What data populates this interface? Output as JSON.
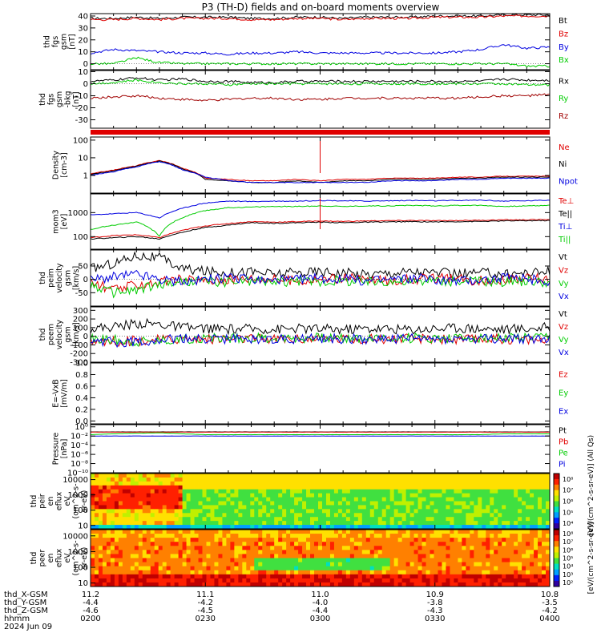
{
  "title": "P3 (TH-D) fields and on-board moments overview",
  "colors": {
    "black": "#000000",
    "red": "#e00000",
    "dark_red": "#a00000",
    "green": "#00cc00",
    "blue": "#0000e0",
    "dark_green": "#00a000"
  },
  "chart_data": [
    {
      "type": "line",
      "ylabel": [
        "thd",
        "fgs",
        "gsm",
        "[nT]"
      ],
      "ylim": [
        -5,
        42
      ],
      "yticks": [
        0,
        10,
        20,
        30,
        40
      ],
      "series": [
        {
          "name": "Bt",
          "color": "black",
          "values": [
            38,
            38,
            39,
            38,
            39,
            39,
            39,
            38,
            38,
            39,
            39,
            38,
            39,
            39,
            39,
            40,
            40,
            40,
            41,
            41,
            41
          ]
        },
        {
          "name": "Bz",
          "color": "red",
          "values": [
            37,
            37,
            38,
            37,
            38,
            38,
            38,
            37,
            37,
            38,
            38,
            37,
            38,
            38,
            38,
            39,
            39,
            39,
            40,
            40,
            40
          ]
        },
        {
          "name": "By",
          "color": "blue",
          "values": [
            9,
            12,
            11,
            10,
            9,
            9,
            8,
            9,
            9,
            10,
            9,
            9,
            9,
            9,
            9,
            9,
            10,
            12,
            16,
            13,
            14
          ]
        },
        {
          "name": "Bx",
          "color": "green",
          "values": [
            0,
            0,
            5,
            1,
            0,
            0,
            0,
            0,
            0,
            0,
            0,
            0,
            0,
            0,
            0,
            0,
            0,
            0,
            0,
            -2,
            -2
          ]
        }
      ]
    },
    {
      "type": "line",
      "ylabel": [
        "thd",
        "fgs",
        "gsm",
        "-bkg",
        "[nT]"
      ],
      "ylim": [
        -37,
        11
      ],
      "yticks": [
        10,
        0,
        -10,
        -20,
        -30
      ],
      "series": [
        {
          "name": "Rx",
          "color": "black",
          "values": [
            2,
            3,
            5,
            3,
            4,
            2,
            2,
            1,
            1,
            2,
            2,
            2,
            2,
            2,
            2,
            2,
            2,
            2,
            4,
            3,
            3
          ]
        },
        {
          "name": "Ry",
          "color": "green",
          "values": [
            0,
            1,
            3,
            1,
            0,
            0,
            -1,
            0,
            0,
            0,
            0,
            0,
            0,
            0,
            0,
            0,
            0,
            0,
            0,
            -1,
            -1
          ]
        },
        {
          "name": "Rz",
          "color": "dark_red",
          "values": [
            -12,
            -11,
            -10,
            -12,
            -13,
            -14,
            -13,
            -12,
            -12,
            -13,
            -13,
            -12,
            -12,
            -12,
            -12,
            -12,
            -12,
            -11,
            -10,
            -10,
            -9
          ]
        }
      ]
    },
    {
      "type": "line",
      "scale": "log",
      "ylabel": [
        "Density",
        "[cm-3]"
      ],
      "ylim": [
        0.1,
        150
      ],
      "yticks": [
        1,
        10,
        100
      ],
      "series": [
        {
          "name": "Ne",
          "color": "red",
          "values": [
            1.2,
            2.0,
            3.5,
            7.0,
            2.5,
            0.7,
            0.6,
            0.5,
            0.5,
            0.6,
            0.5,
            0.6,
            0.6,
            0.7,
            0.7,
            0.7,
            0.8,
            0.8,
            0.9,
            0.9,
            0.9
          ]
        },
        {
          "name": "Ni",
          "color": "black",
          "values": [
            1.1,
            1.8,
            3.3,
            6.5,
            2.3,
            0.6,
            0.5,
            0.4,
            0.4,
            0.5,
            0.4,
            0.5,
            0.5,
            0.6,
            0.6,
            0.6,
            0.7,
            0.7,
            0.8,
            0.8,
            0.8
          ]
        },
        {
          "name": "Npot",
          "color": "blue",
          "values": [
            1.0,
            1.6,
            3.0,
            6.0,
            2.0,
            0.8,
            0.5,
            0.4,
            0.4,
            0.4,
            0.4,
            0.4,
            0.4,
            0.5,
            0.5,
            0.5,
            0.6,
            0.6,
            0.7,
            0.7,
            0.7
          ]
        }
      ]
    },
    {
      "type": "line",
      "scale": "log",
      "ylabel": [
        "mom3",
        "[eV]"
      ],
      "ylim": [
        30,
        6000
      ],
      "yticks": [
        100,
        1000
      ],
      "series": [
        {
          "name": "Te⊥",
          "color": "red",
          "values": [
            90,
            110,
            120,
            90,
            180,
            280,
            350,
            420,
            400,
            420,
            450,
            430,
            450,
            460,
            470,
            460,
            470,
            480,
            500,
            500,
            520
          ]
        },
        {
          "name": "Te||",
          "color": "black",
          "values": [
            80,
            90,
            100,
            80,
            150,
            240,
            300,
            380,
            360,
            380,
            400,
            380,
            400,
            410,
            420,
            410,
            420,
            430,
            450,
            460,
            470
          ]
        },
        {
          "name": "Ti⊥",
          "color": "blue",
          "values": [
            800,
            900,
            1000,
            600,
            1500,
            2500,
            3000,
            2900,
            3000,
            3000,
            3200,
            3100,
            3000,
            3100,
            3200,
            3100,
            3200,
            3300,
            3000,
            3100,
            3300
          ]
        },
        {
          "name": "Ti||",
          "color": "green",
          "values": [
            200,
            300,
            400,
            100,
            600,
            1200,
            1600,
            1700,
            1800,
            1800,
            1900,
            1800,
            1900,
            1900,
            2000,
            1900,
            2000,
            2000,
            1800,
            1900,
            2000
          ]
        }
      ]
    },
    {
      "type": "line",
      "ylabel": [
        "thd",
        "peim",
        "velocity",
        "gsm",
        "[km/s]"
      ],
      "ylim": [
        -100,
        110
      ],
      "yticks": [
        -50,
        0,
        50
      ],
      "series": [
        {
          "name": "Vt",
          "color": "black",
          "values": [
            40,
            60,
            90,
            80,
            40,
            30,
            25,
            30,
            20,
            25,
            30,
            25,
            20,
            25,
            30,
            25,
            20,
            25,
            20,
            25,
            30
          ]
        },
        {
          "name": "Vz",
          "color": "red",
          "values": [
            -10,
            -40,
            -20,
            -10,
            0,
            -5,
            0,
            5,
            0,
            -5,
            0,
            5,
            0,
            -5,
            0,
            5,
            0,
            -5,
            0,
            5,
            0
          ]
        },
        {
          "name": "Vy",
          "color": "green",
          "values": [
            -20,
            -50,
            -40,
            -20,
            -10,
            -5,
            -10,
            -5,
            -10,
            -5,
            -10,
            -5,
            -10,
            -5,
            -10,
            -5,
            -10,
            -5,
            -10,
            -5,
            -10
          ]
        },
        {
          "name": "Vx",
          "color": "blue",
          "values": [
            0,
            10,
            20,
            0,
            -10,
            0,
            5,
            0,
            -5,
            0,
            5,
            0,
            -5,
            0,
            5,
            0,
            -5,
            0,
            5,
            0,
            -5
          ]
        }
      ]
    },
    {
      "type": "line",
      "ylabel": [
        "thd",
        "peem",
        "velocity",
        "gsm",
        "[km/s]"
      ],
      "ylim": [
        -300,
        340
      ],
      "yticks": [
        300,
        200,
        100,
        0,
        -100,
        -200,
        -300
      ],
      "series": [
        {
          "name": "Vt",
          "color": "black",
          "values": [
            90,
            110,
            150,
            140,
            100,
            90,
            80,
            85,
            80,
            90,
            85,
            80,
            90,
            85,
            80,
            90,
            100,
            90,
            80,
            90,
            100
          ]
        },
        {
          "name": "Vz",
          "color": "red",
          "values": [
            -40,
            -60,
            -50,
            -40,
            -30,
            -30,
            -30,
            -30,
            -30,
            -30,
            -30,
            -30,
            -30,
            -30,
            -30,
            -30,
            -40,
            -30,
            -30,
            -40,
            -50
          ]
        },
        {
          "name": "Vy",
          "color": "green",
          "values": [
            -30,
            -40,
            -60,
            -50,
            -30,
            -20,
            -20,
            -20,
            -20,
            -20,
            -20,
            -20,
            -20,
            -20,
            -20,
            -20,
            -20,
            -20,
            -20,
            -20,
            -20
          ]
        },
        {
          "name": "Vx",
          "color": "blue",
          "values": [
            -50,
            -70,
            -60,
            -40,
            -30,
            -30,
            -30,
            -30,
            -30,
            -30,
            -30,
            -30,
            -30,
            -30,
            -30,
            -30,
            -30,
            -30,
            -30,
            -30,
            -30
          ]
        }
      ]
    },
    {
      "type": "line",
      "ylabel": [
        "E=-VxB",
        "[mV/m]"
      ],
      "ylim": [
        -0.05,
        1.0
      ],
      "yticks": [
        0.0,
        0.2,
        0.4,
        0.6,
        0.8,
        1.0
      ],
      "tick_labels": [
        "0.0",
        "0.2",
        "0.4",
        "0.6",
        "0.8",
        "1.0"
      ],
      "series": [
        {
          "name": "Ez",
          "color": "red",
          "values": []
        },
        {
          "name": "Ey",
          "color": "green",
          "values": []
        },
        {
          "name": "Ex",
          "color": "blue",
          "values": []
        }
      ]
    },
    {
      "type": "line",
      "scale": "log",
      "ylabel": [
        "Pressure",
        "[nPa]"
      ],
      "ylim": [
        1e-10,
        3
      ],
      "yticks": [
        1,
        0.01,
        0.0001,
        1e-06,
        1e-08,
        1e-10
      ],
      "tick_labels": [
        "10⁰",
        "10⁻²",
        "10⁻⁴",
        "10⁻⁶",
        "10⁻⁸",
        "10⁻¹⁰"
      ],
      "series": [
        {
          "name": "Pt",
          "color": "black",
          "values": [
            0.08,
            0.08,
            0.08,
            0.08,
            0.08,
            0.08,
            0.08,
            0.08,
            0.08,
            0.08,
            0.08,
            0.08,
            0.08,
            0.08,
            0.08,
            0.08,
            0.08,
            0.08,
            0.08,
            0.08,
            0.08
          ]
        },
        {
          "name": "Pb",
          "color": "red",
          "values": [
            0.07,
            0.07,
            0.07,
            0.07,
            0.07,
            0.07,
            0.07,
            0.07,
            0.07,
            0.07,
            0.07,
            0.07,
            0.07,
            0.07,
            0.07,
            0.07,
            0.07,
            0.07,
            0.07,
            0.07,
            0.07
          ]
        },
        {
          "name": "Pe",
          "color": "green",
          "values": [
            0.02,
            0.03,
            0.04,
            0.05,
            0.03,
            0.02,
            0.02,
            0.02,
            0.02,
            0.02,
            0.02,
            0.02,
            0.02,
            0.02,
            0.02,
            0.02,
            0.02,
            0.02,
            0.03,
            0.03,
            0.03
          ]
        },
        {
          "name": "Pi",
          "color": "blue",
          "values": [
            0.01,
            0.01,
            0.01,
            0.01,
            0.01,
            0.01,
            0.01,
            0.01,
            0.01,
            0.01,
            0.01,
            0.01,
            0.01,
            0.01,
            0.01,
            0.01,
            0.01,
            0.01,
            0.01,
            0.01,
            0.01
          ]
        }
      ]
    },
    {
      "type": "heatmap",
      "ylabel": [
        "thd",
        "peir",
        "en",
        "eflux",
        "eV",
        "(cm^2-s-",
        "sr-eV)"
      ],
      "yticks": [
        10,
        100,
        1000,
        10000
      ],
      "colorbar_ticks": [
        "10⁸",
        "10⁷",
        "10⁶",
        "10⁵",
        "10⁴"
      ],
      "colorbar_label": "[eV/(cm^2-s-sr-eV)] (All Qs)"
    },
    {
      "type": "heatmap",
      "ylabel": [
        "thd",
        "peer",
        "en",
        "eflux",
        "eV",
        "(cm^2-s-",
        "sr-eV)"
      ],
      "yticks": [
        10,
        100,
        1000,
        10000
      ],
      "colorbar_ticks": [
        "10⁸",
        "10⁷",
        "10⁶",
        "10⁵",
        "10⁴",
        "10³",
        "10²"
      ],
      "colorbar_label": "[eV/(cm^2-s-sr-eV)]"
    }
  ],
  "x_axis": {
    "row_labels": [
      "thd_X-GSM",
      "thd_Y-GSM",
      "thd_Z-GSM",
      "hhmm",
      "2024 Jun 09"
    ],
    "ticks": [
      {
        "x": "11.2",
        "y": "-4.4",
        "z": "-4.6",
        "hhmm": "0200"
      },
      {
        "x": "11.1",
        "y": "-4.2",
        "z": "-4.5",
        "hhmm": "0230"
      },
      {
        "x": "11.0",
        "y": "-4.0",
        "z": "-4.4",
        "hhmm": "0300"
      },
      {
        "x": "10.9",
        "y": "-3.8",
        "z": "-4.3",
        "hhmm": "0330"
      },
      {
        "x": "10.8",
        "y": "-3.5",
        "z": "-4.2",
        "hhmm": "0400"
      }
    ]
  }
}
